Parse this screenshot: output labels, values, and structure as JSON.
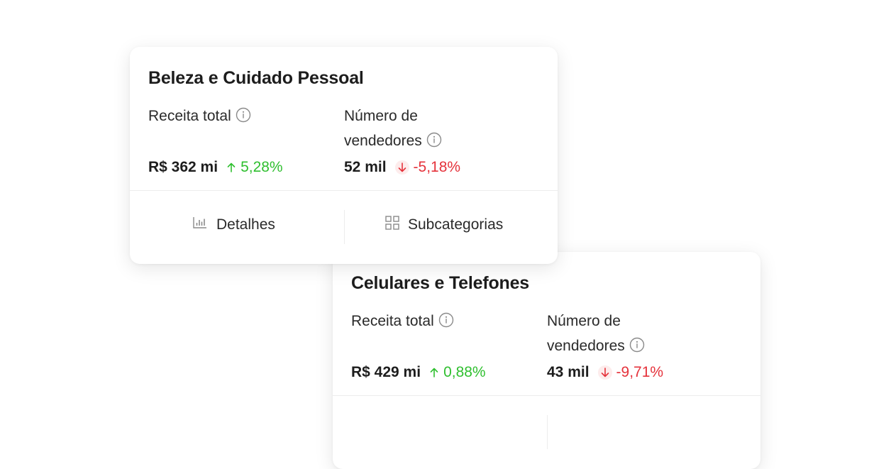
{
  "cards": [
    {
      "title": "Beleza e Cuidado Pessoal",
      "metrics": [
        {
          "label": "Receita total",
          "value": "R$ 362 mi",
          "trend": "up",
          "change": "5,28%"
        },
        {
          "label_line1": "Número de",
          "label_line2": "vendedores",
          "value": "52 mil",
          "trend": "down",
          "change": "-5,18%"
        }
      ],
      "actions": {
        "details": "Detalhes",
        "subcategories": "Subcategorias"
      }
    },
    {
      "title": "Celulares e Telefones",
      "metrics": [
        {
          "label": "Receita total",
          "value": "R$ 429 mi",
          "trend": "up",
          "change": "0,88%"
        },
        {
          "label_line1": "Número de",
          "label_line2": "vendedores",
          "value": "43 mil",
          "trend": "down",
          "change": "-9,71%"
        }
      ]
    }
  ],
  "colors": {
    "positive": "#2fbf2f",
    "negative": "#e5323b",
    "icon_gray": "#8a8a8a"
  },
  "icons": {
    "info": "info-circle-icon",
    "up": "arrow-up-icon",
    "down": "arrow-down-icon",
    "details": "bar-chart-icon",
    "subcategories": "grid-icon"
  }
}
